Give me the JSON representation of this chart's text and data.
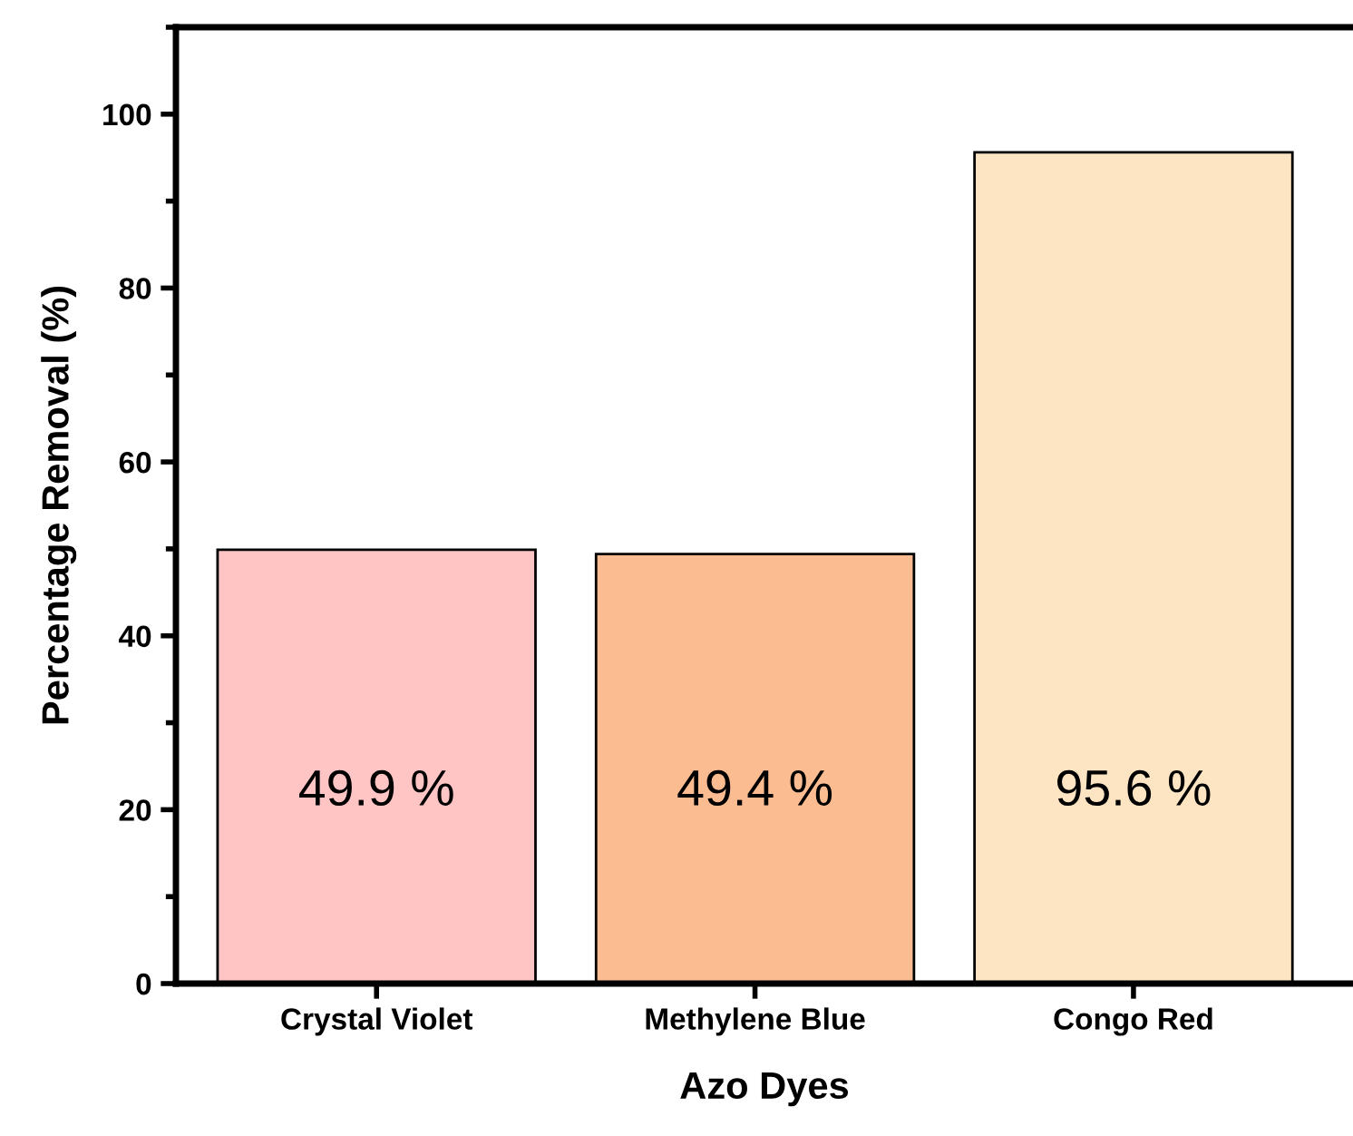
{
  "chart_data": {
    "type": "bar",
    "xlabel": "Azo Dyes",
    "ylabel": "Percentage Removal (%)",
    "categories": [
      "Crystal Violet",
      "Methylene Blue",
      "Congo Red"
    ],
    "values": [
      49.9,
      49.4,
      95.6
    ],
    "colors": [
      "#ffc5c5",
      "#fbbc91",
      "#fde4c2"
    ],
    "value_labels": [
      "49.9 %",
      "49.4 %",
      "95.6 %"
    ],
    "ylim": [
      0,
      110
    ],
    "yticks": [
      0,
      20,
      40,
      60,
      80,
      100
    ],
    "grid": false,
    "legend": false
  }
}
